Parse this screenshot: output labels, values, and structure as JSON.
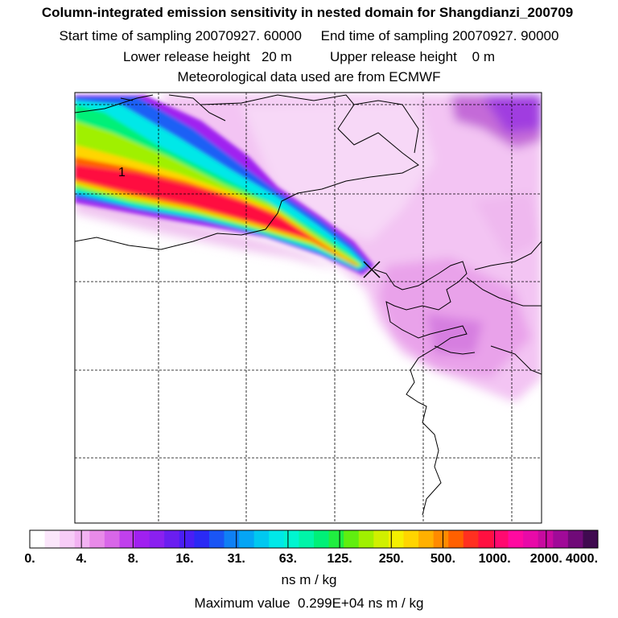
{
  "header": {
    "title": "Column-integrated emission sensitivity in nested domain for Shangdianzi_200709",
    "line2": "Start time of sampling 20070927. 60000     End time of sampling 20070927. 90000",
    "line3": "Lower release height   20 m          Upper release height    0 m",
    "line4": "Meteorological data used are from ECMWF"
  },
  "map": {
    "contour_label": "1",
    "release_marker": "x-marker"
  },
  "colorbar": {
    "tick_labels": [
      "0.",
      "4.",
      "8.",
      "16.",
      "31.",
      "63.",
      "125.",
      "250.",
      "500.",
      "1000.",
      "2000.",
      "4000."
    ],
    "colors": [
      "#ffffff",
      "#fbe6fb",
      "#f7ccf7",
      "#f2b2f2",
      "#e88ae8",
      "#d866e8",
      "#c040ec",
      "#a020f0",
      "#8a20f0",
      "#6a1ef0",
      "#4a1ef5",
      "#2a2af5",
      "#1a55f5",
      "#0f80f5",
      "#05a5f5",
      "#00c8f0",
      "#00e8e8",
      "#00f5d0",
      "#00f5a8",
      "#00f078",
      "#20ee40",
      "#60ee10",
      "#a0f000",
      "#d0f000",
      "#f5f000",
      "#ffd500",
      "#ffb000",
      "#ff8a00",
      "#ff6000",
      "#ff3020",
      "#ff1040",
      "#ff0a70",
      "#ff0aa0",
      "#e80aa8",
      "#c80aa0",
      "#a00a98",
      "#700a78",
      "#400a50"
    ],
    "units": "ns m / kg"
  },
  "footer": {
    "max_value": "Maximum value  0.299E+04 ns m / kg"
  }
}
